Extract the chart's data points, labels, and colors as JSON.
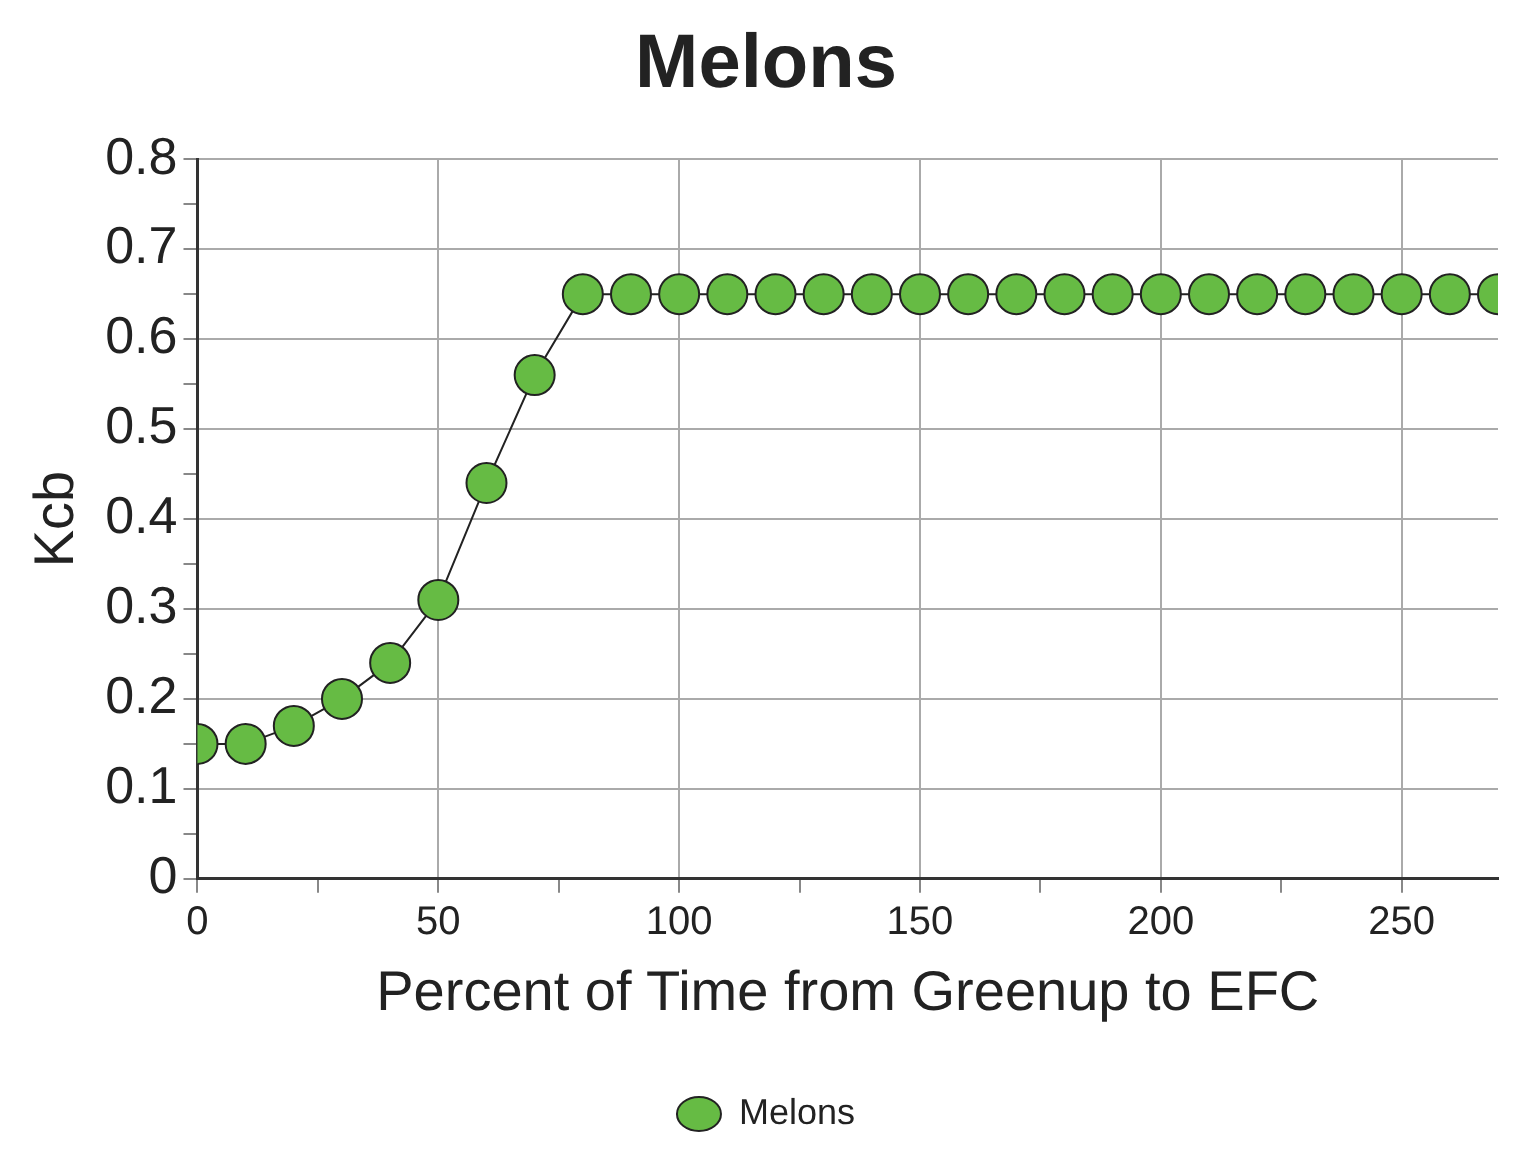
{
  "chart_data": {
    "type": "line",
    "title": "Melons",
    "xlabel": "Percent of Time from Greenup to EFC",
    "ylabel": "Kcb",
    "x": [
      0,
      10,
      20,
      30,
      40,
      50,
      60,
      70,
      80,
      90,
      100,
      110,
      120,
      130,
      140,
      150,
      160,
      170,
      180,
      190,
      200,
      210,
      220,
      230,
      240,
      250,
      260,
      270
    ],
    "series": [
      {
        "name": "Melons",
        "color": "#66bb44",
        "values": [
          0.15,
          0.15,
          0.17,
          0.2,
          0.24,
          0.31,
          0.44,
          0.56,
          0.65,
          0.65,
          0.65,
          0.65,
          0.65,
          0.65,
          0.65,
          0.65,
          0.65,
          0.65,
          0.65,
          0.65,
          0.65,
          0.65,
          0.65,
          0.65,
          0.65,
          0.65,
          0.65,
          0.65
        ]
      }
    ],
    "xlim": [
      0,
      270
    ],
    "xticks": [
      0,
      {
        "value": 25,
        "label": null
      },
      50,
      {
        "value": 75,
        "label": null
      },
      100,
      {
        "value": 125,
        "label": null
      },
      150,
      {
        "value": 175,
        "label": null
      },
      200,
      {
        "value": 225,
        "label": null
      },
      250
    ],
    "ylim": [
      0,
      0.8
    ],
    "yticks": [
      0,
      {
        "value": 0.05,
        "label": null
      },
      0.1,
      {
        "value": 0.15,
        "label": null
      },
      0.2,
      {
        "value": 0.25,
        "label": null
      },
      0.3,
      {
        "value": 0.35,
        "label": null
      },
      0.4,
      {
        "value": 0.45,
        "label": null
      },
      0.5,
      {
        "value": 0.55,
        "label": null
      },
      0.6,
      {
        "value": 0.65,
        "label": null
      },
      0.7,
      {
        "value": 0.75,
        "label": null
      },
      0.8
    ],
    "grid": true,
    "legend": "bottom",
    "marker": "circle",
    "line_style": "solid"
  }
}
